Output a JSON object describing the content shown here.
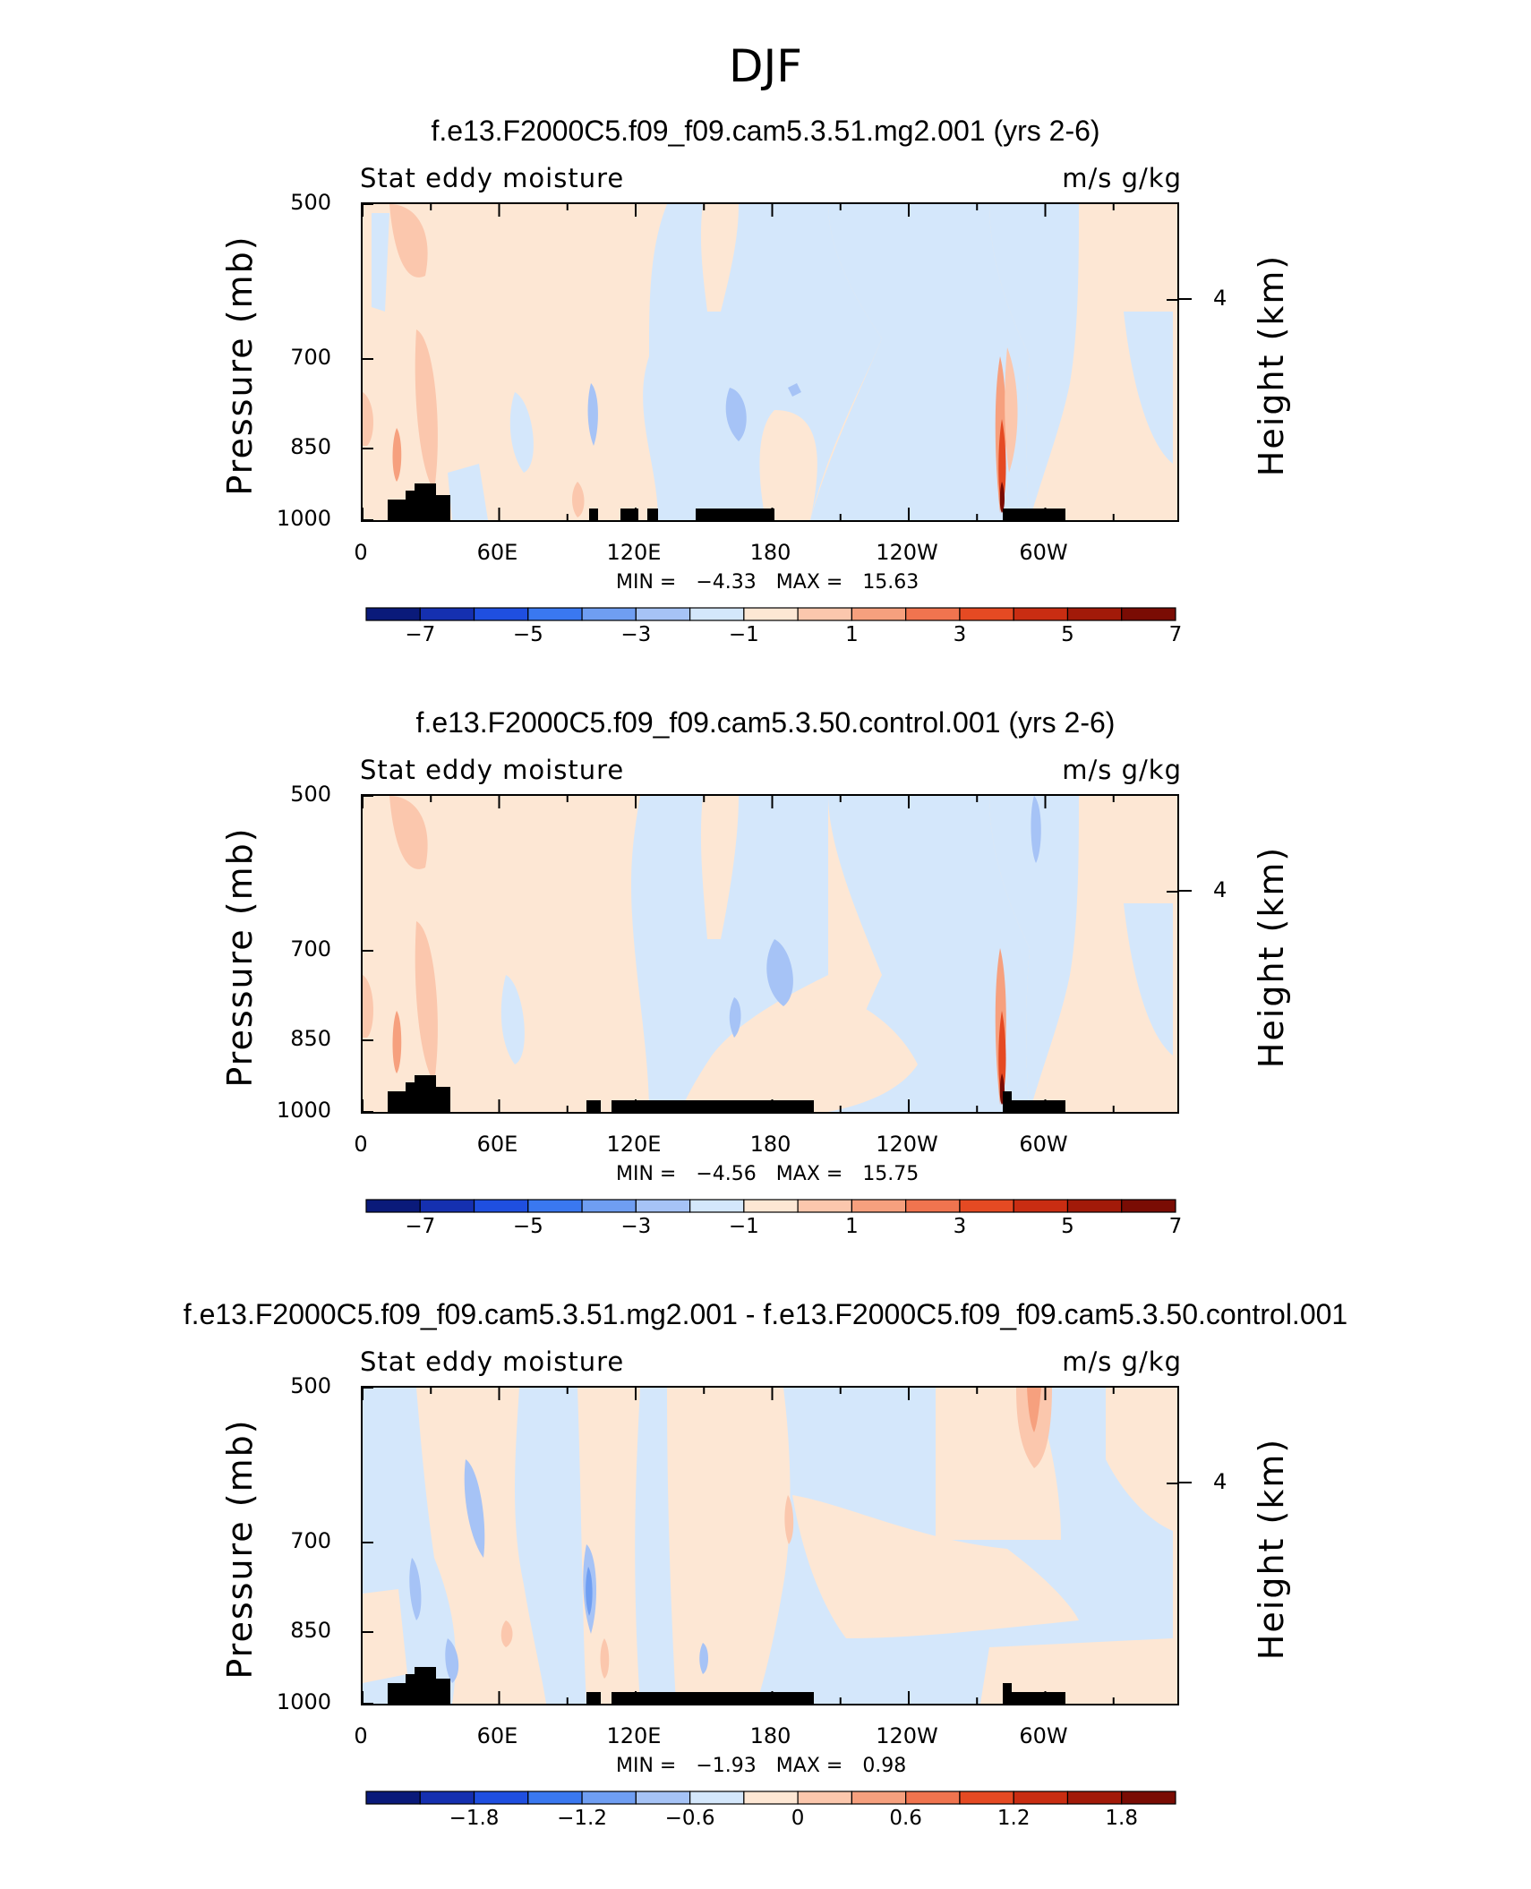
{
  "figure_title": "DJF",
  "colors": {
    "blue_light": "#d4e7fb",
    "peach": "#fde7d4",
    "land": "#000000"
  },
  "chart_data": [
    {
      "type": "heatmap",
      "title": "f.e13.F2000C5.f09_f09.cam5.3.51.mg2.001 (yrs 2-6)",
      "left_label": "Stat eddy moisture",
      "right_label": "m/s g/kg",
      "ylabel": "Pressure (mb)",
      "ylabel_right": "Height (km)",
      "y_ticks": [
        "500",
        "700",
        "850",
        "1000"
      ],
      "y_right_ticks": [
        "4"
      ],
      "x_ticks": [
        "0",
        "60E",
        "120E",
        "180",
        "120W",
        "60W"
      ],
      "min_label": "MIN =",
      "min": "−4.33",
      "max_label": "MAX =",
      "max": "15.63",
      "colorbar_ticks": [
        "−7",
        "−5",
        "−3",
        "−1",
        "1",
        "3",
        "5",
        "7"
      ]
    },
    {
      "type": "heatmap",
      "title": "f.e13.F2000C5.f09_f09.cam5.3.50.control.001 (yrs 2-6)",
      "left_label": "Stat eddy moisture",
      "right_label": "m/s g/kg",
      "ylabel": "Pressure (mb)",
      "ylabel_right": "Height (km)",
      "y_ticks": [
        "500",
        "700",
        "850",
        "1000"
      ],
      "y_right_ticks": [
        "4"
      ],
      "x_ticks": [
        "0",
        "60E",
        "120E",
        "180",
        "120W",
        "60W"
      ],
      "min_label": "MIN =",
      "min": "−4.56",
      "max_label": "MAX =",
      "max": "15.75",
      "colorbar_ticks": [
        "−7",
        "−5",
        "−3",
        "−1",
        "1",
        "3",
        "5",
        "7"
      ]
    },
    {
      "type": "heatmap",
      "title": "f.e13.F2000C5.f09_f09.cam5.3.51.mg2.001 - f.e13.F2000C5.f09_f09.cam5.3.50.control.001",
      "left_label": "Stat eddy moisture",
      "right_label": "m/s g/kg",
      "ylabel": "Pressure (mb)",
      "ylabel_right": "Height (km)",
      "y_ticks": [
        "500",
        "700",
        "850",
        "1000"
      ],
      "y_right_ticks": [
        "4"
      ],
      "x_ticks": [
        "0",
        "60E",
        "120E",
        "180",
        "120W",
        "60W"
      ],
      "min_label": "MIN =",
      "min": "−1.93",
      "max_label": "MAX =",
      "max": "0.98",
      "colorbar_ticks": [
        "−1.8",
        "−1.2",
        "−0.6",
        "0",
        "0.6",
        "1.2",
        "1.8"
      ]
    }
  ],
  "colorbar_colors": [
    "#0a1a7a",
    "#1530b0",
    "#1f4fe0",
    "#3a78f0",
    "#6f9ef2",
    "#a6c3f6",
    "#d4e7fb",
    "#fde7d4",
    "#fbc7ad",
    "#f6a07e",
    "#f0744f",
    "#e54a23",
    "#c92d12",
    "#a21a09",
    "#7a0c04"
  ]
}
